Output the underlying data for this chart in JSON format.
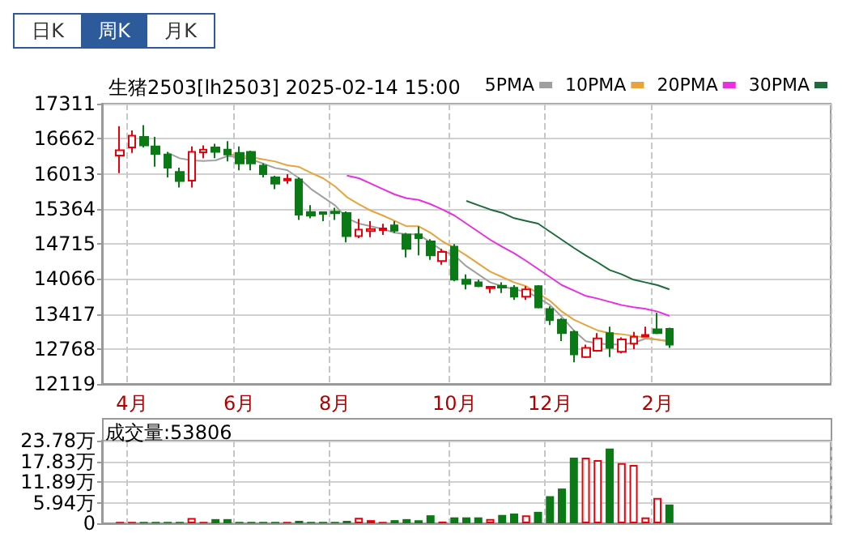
{
  "chart_data": [
    {
      "type": "candlestick",
      "title": "生猪2503[lh2503] 2025-02-14 15:00",
      "annotations": [
        "日K",
        "周K",
        "月K"
      ],
      "categories": [
        null,
        "4月",
        null,
        null,
        null,
        null,
        null,
        null,
        null,
        null,
        "6月",
        null,
        null,
        null,
        null,
        null,
        null,
        null,
        "8月",
        null,
        null,
        null,
        null,
        null,
        null,
        null,
        null,
        null,
        "10月",
        null,
        null,
        null,
        null,
        null,
        null,
        null,
        "12月",
        null,
        null,
        null,
        null,
        null,
        null,
        null,
        null,
        "2月",
        null
      ],
      "ohlc": [
        [
          16350,
          16895,
          16025,
          16450
        ],
        [
          16500,
          16816,
          16401,
          16717
        ],
        [
          16697,
          16914,
          16500,
          16539
        ],
        [
          16519,
          16697,
          16144,
          16381
        ],
        [
          16371,
          16420,
          15946,
          16124
        ],
        [
          16045,
          16124,
          15759,
          15877
        ],
        [
          15887,
          16519,
          15759,
          16420
        ],
        [
          16410,
          16539,
          16302,
          16460
        ],
        [
          16500,
          16569,
          16302,
          16420
        ],
        [
          16460,
          16618,
          16243,
          16371
        ],
        [
          16401,
          16519,
          16075,
          16203
        ],
        [
          16420,
          16440,
          16075,
          16203
        ],
        [
          16164,
          16203,
          15946,
          16006
        ],
        [
          15946,
          15976,
          15729,
          15828
        ],
        [
          15890,
          16006,
          15828,
          15920
        ],
        [
          15907,
          15946,
          15156,
          15255
        ],
        [
          15304,
          15432,
          15186,
          15235
        ],
        [
          15300,
          15300,
          15136,
          15270
        ],
        [
          15310,
          15383,
          15156,
          15280
        ],
        [
          15284,
          15314,
          14741,
          14859
        ],
        [
          14859,
          15176,
          14820,
          14978
        ],
        [
          14950,
          15136,
          14840,
          14990
        ],
        [
          14970,
          15087,
          14879,
          15000
        ],
        [
          15057,
          15136,
          14919,
          14958
        ],
        [
          14889,
          14919,
          14464,
          14622
        ],
        [
          14890,
          15038,
          14500,
          14820
        ],
        [
          14760,
          14800,
          14420,
          14500
        ],
        [
          14396,
          14623,
          14327,
          14564
        ],
        [
          14663,
          14712,
          14020,
          14050
        ],
        [
          14050,
          14149,
          13872,
          13971
        ],
        [
          14001,
          14050,
          13912,
          13931
        ],
        [
          13895,
          13931,
          13803,
          13920
        ],
        [
          13940,
          14001,
          13803,
          13905
        ],
        [
          13902,
          13951,
          13675,
          13734
        ],
        [
          13734,
          13931,
          13675,
          13872
        ],
        [
          13931,
          13951,
          13517,
          13536
        ],
        [
          13507,
          13556,
          13210,
          13299
        ],
        [
          13309,
          13339,
          12914,
          13062
        ],
        [
          13082,
          13112,
          12519,
          12667
        ],
        [
          12618,
          12845,
          12598,
          12786
        ],
        [
          12736,
          13062,
          12716,
          12963
        ],
        [
          13062,
          13181,
          12618,
          12786
        ],
        [
          12716,
          12983,
          12687,
          12944
        ],
        [
          12865,
          13082,
          12766,
          12993
        ],
        [
          12995,
          13181,
          12990,
          13025
        ],
        [
          13131,
          13437,
          13042,
          13062
        ],
        [
          13141,
          13161,
          12786,
          12845
        ]
      ],
      "colors": [
        "#e8000b",
        "#e8000b",
        "#0b7a16",
        "#0b7a16",
        "#0b7a16",
        "#0b7a16",
        "#e8000b",
        "#e8000b",
        "#0b7a16",
        "#0b7a16",
        "#0b7a16",
        "#0b7a16",
        "#0b7a16",
        "#0b7a16",
        "#e8000b",
        "#0b7a16",
        "#0b7a16",
        "#0b7a16",
        "#0b7a16",
        "#0b7a16",
        "#e8000b",
        "#e8000b",
        "#e8000b",
        "#0b7a16",
        "#0b7a16",
        "#0b7a16",
        "#0b7a16",
        "#e8000b",
        "#0b7a16",
        "#0b7a16",
        "#0b7a16",
        "#e8000b",
        "#0b7a16",
        "#0b7a16",
        "#e8000b",
        "#0b7a16",
        "#0b7a16",
        "#0b7a16",
        "#0b7a16",
        "#e8000b",
        "#e8000b",
        "#0b7a16",
        "#e8000b",
        "#e8000b",
        "#e8000b",
        "#0b7a16",
        "#0b7a16"
      ],
      "series": [
        {
          "name": "5PMA",
          "type": "line",
          "color": "#a0a0a0",
          "values": [
            null,
            null,
            null,
            null,
            16400,
            16300,
            16260,
            16250,
            16260,
            16340,
            16320,
            16280,
            16200,
            16120,
            16080,
            15930,
            15730,
            15580,
            15430,
            15190,
            15090,
            15040,
            14990,
            14920,
            14890,
            14890,
            14740,
            14590,
            14500,
            14300,
            14150,
            14000,
            13930,
            13870,
            13830,
            13720,
            13580,
            13360,
            13110,
            12910,
            12870,
            12850,
            12850,
            12880,
            12960,
            12940,
            12910
          ]
        },
        {
          "name": "10PMA",
          "type": "line",
          "color": "#e8a33c",
          "values": [
            null,
            null,
            null,
            null,
            null,
            null,
            null,
            null,
            null,
            16370,
            16360,
            16320,
            16280,
            16240,
            16170,
            16140,
            16030,
            15930,
            15780,
            15580,
            15450,
            15330,
            15240,
            15140,
            15040,
            15040,
            14920,
            14760,
            14640,
            14500,
            14350,
            14200,
            14100,
            14000,
            13930,
            13800,
            13660,
            13460,
            13310,
            13210,
            13110,
            13060,
            13040,
            13010,
            12980,
            12940,
            12910
          ]
        },
        {
          "name": "20PMA",
          "type": "line",
          "color": "#e830e0",
          "values": [
            null,
            null,
            null,
            null,
            null,
            null,
            null,
            null,
            null,
            null,
            null,
            null,
            null,
            null,
            null,
            null,
            null,
            null,
            null,
            15980,
            15930,
            15830,
            15730,
            15630,
            15560,
            15530,
            15450,
            15350,
            15240,
            15090,
            14940,
            14790,
            14660,
            14540,
            14400,
            14250,
            14100,
            13950,
            13850,
            13750,
            13700,
            13640,
            13580,
            13540,
            13510,
            13460,
            13380
          ]
        },
        {
          "name": "30PMA",
          "type": "line",
          "color": "#1e6b3c",
          "values": [
            null,
            null,
            null,
            null,
            null,
            null,
            null,
            null,
            null,
            null,
            null,
            null,
            null,
            null,
            null,
            null,
            null,
            null,
            null,
            null,
            null,
            null,
            null,
            null,
            null,
            null,
            null,
            null,
            null,
            15510,
            15430,
            15350,
            15290,
            15190,
            15140,
            15090,
            14940,
            14790,
            14640,
            14500,
            14370,
            14230,
            14150,
            14050,
            14000,
            13950,
            13870
          ]
        }
      ],
      "ylim": [
        12119,
        17311
      ],
      "yticks": [
        12119,
        12768,
        13417,
        14066,
        14715,
        15364,
        16013,
        16662,
        17311
      ],
      "grid": true,
      "legend": "top right"
    },
    {
      "type": "bar",
      "title": "成交量:53806",
      "categories": [
        null,
        null,
        null,
        null,
        null,
        null,
        null,
        null,
        null,
        null,
        null,
        null,
        null,
        null,
        null,
        null,
        null,
        null,
        null,
        null,
        null,
        null,
        null,
        null,
        null,
        null,
        null,
        null,
        null,
        null,
        null,
        null,
        null,
        null,
        null,
        null,
        null,
        null,
        null,
        null,
        null,
        null,
        null,
        null,
        null,
        null,
        null
      ],
      "values": [
        0.4,
        0.4,
        0.4,
        0.4,
        0.4,
        0.4,
        1.5,
        0.4,
        1.2,
        1.2,
        0.4,
        0.4,
        0.4,
        0.4,
        0.4,
        0.7,
        0.4,
        0.4,
        0.4,
        0.7,
        1.6,
        0.9,
        0.4,
        0.9,
        1.2,
        0.9,
        2.3,
        0.5,
        1.7,
        1.7,
        1.7,
        1.2,
        2.4,
        2.8,
        2.3,
        3.3,
        7.8,
        10.0,
        18.9,
        18.9,
        18.2,
        21.5,
        17.3,
        16.8,
        1.7,
        7.3,
        5.4
      ],
      "colors": [
        "#e8000b",
        "#e8000b",
        "#0b7a16",
        "#0b7a16",
        "#0b7a16",
        "#0b7a16",
        "#e8000b",
        "#e8000b",
        "#0b7a16",
        "#0b7a16",
        "#0b7a16",
        "#0b7a16",
        "#0b7a16",
        "#0b7a16",
        "#e8000b",
        "#0b7a16",
        "#0b7a16",
        "#0b7a16",
        "#0b7a16",
        "#0b7a16",
        "#e8000b",
        "#e8000b",
        "#e8000b",
        "#0b7a16",
        "#0b7a16",
        "#0b7a16",
        "#0b7a16",
        "#e8000b",
        "#0b7a16",
        "#0b7a16",
        "#0b7a16",
        "#e8000b",
        "#0b7a16",
        "#0b7a16",
        "#e8000b",
        "#0b7a16",
        "#0b7a16",
        "#0b7a16",
        "#0b7a16",
        "#e8000b",
        "#e8000b",
        "#0b7a16",
        "#e8000b",
        "#e8000b",
        "#e8000b",
        "#e8000b",
        "#0b7a16"
      ],
      "ylim": [
        0,
        23.78
      ],
      "yticks": [
        0,
        {
          "value": 5.94,
          "label": "5.94万"
        },
        {
          "value": 11.89,
          "label": "11.89万"
        },
        {
          "value": 17.83,
          "label": "17.83万"
        },
        {
          "value": 23.78,
          "label": "23.78万"
        }
      ],
      "grid": true,
      "tick_labels": "y"
    }
  ]
}
